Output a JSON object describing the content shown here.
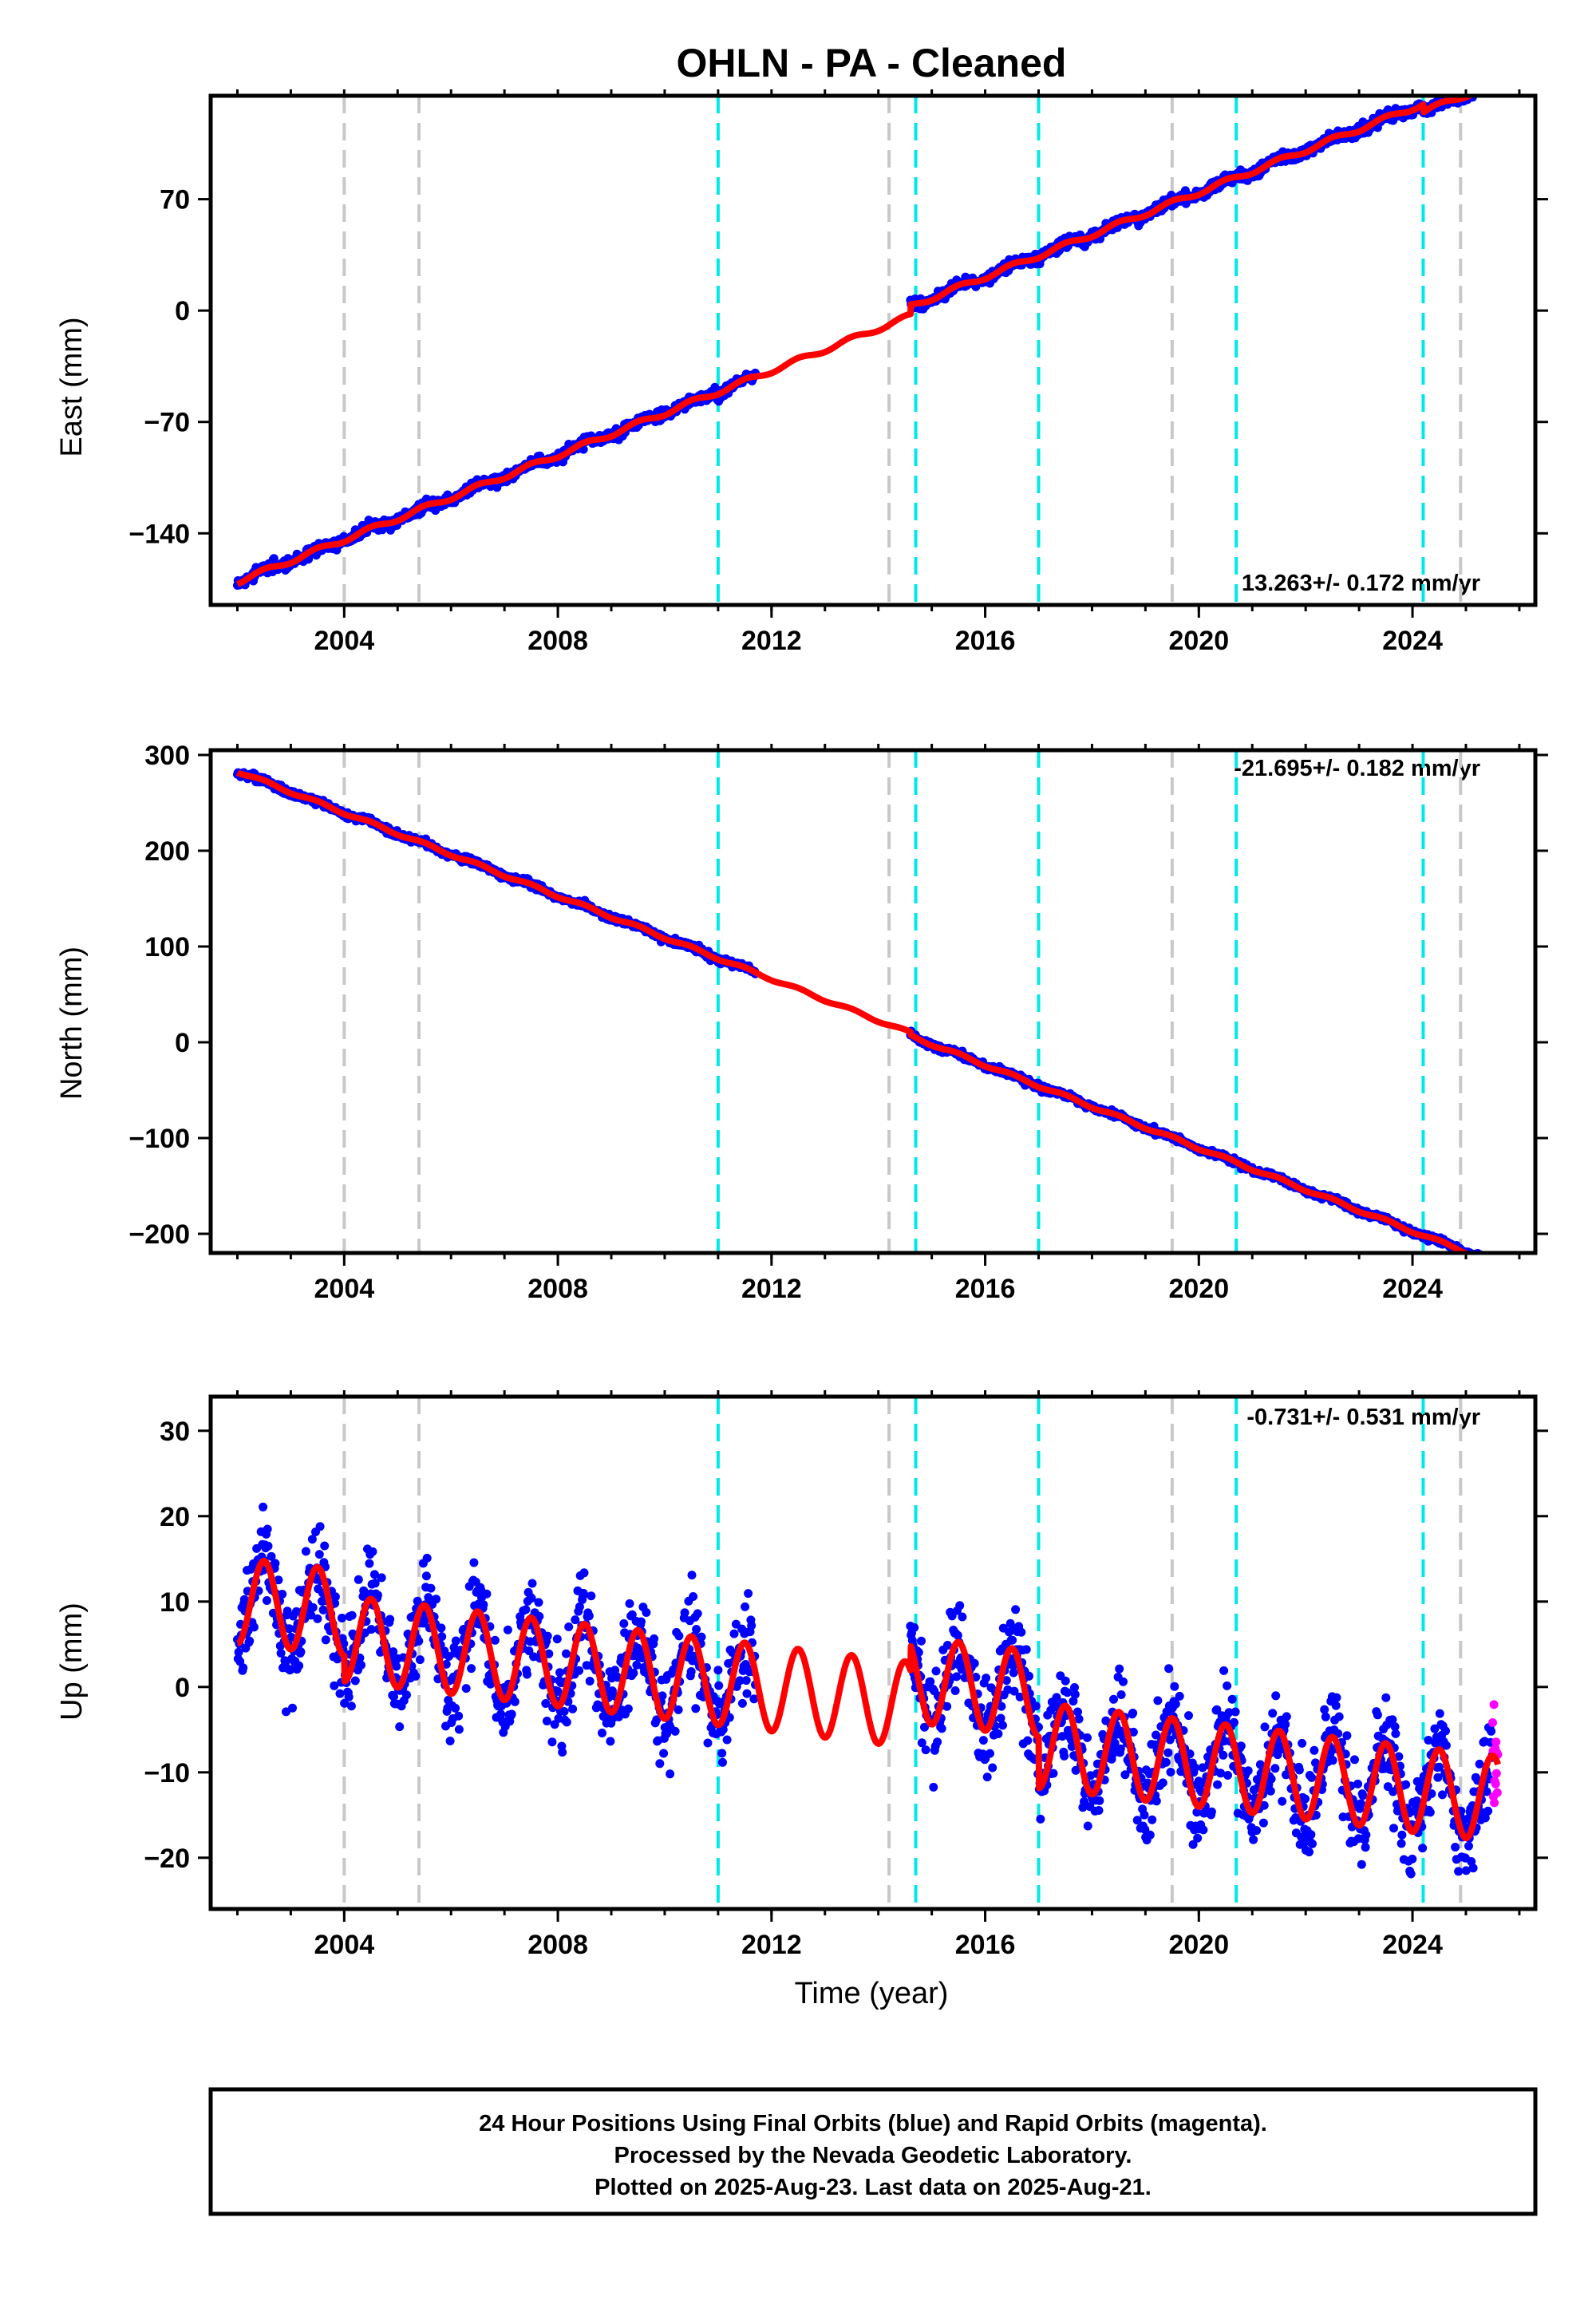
{
  "title": "OHLN  - PA - Cleaned",
  "colors": {
    "final_orbits": "#0000ff",
    "rapid_orbits": "#ff00ff",
    "model": "#ff0000",
    "antenna_change": "#00e8e8",
    "other_event": "#c8c8c8"
  },
  "chart_data": [
    {
      "type": "scatter",
      "name": "east",
      "ylabel": "East (mm)",
      "xlabel": "",
      "xlim": [
        2001.5,
        2026.3
      ],
      "ylim": [
        -185,
        135
      ],
      "x_ticks": [
        2004,
        2008,
        2012,
        2016,
        2020,
        2024
      ],
      "y_ticks": [
        -140,
        -70,
        0,
        70
      ],
      "rate_label": "13.263+/- 0.172 mm/yr",
      "legend_position": "bottom-right",
      "grid": false,
      "trend": {
        "rate": 13.263,
        "ref_year": 2013.8,
        "ref_value": -14
      },
      "seasonal": {
        "amplitude": 1.5
      },
      "offsets": [
        {
          "year": 2014.6,
          "value": 6
        },
        {
          "year": 2024.2,
          "value": -5
        }
      ],
      "final_orbits_span": [
        [
          2002.0,
          2011.7
        ],
        [
          2014.6,
          2025.5
        ]
      ],
      "rapid_orbits_span": [
        2025.5,
        2025.6
      ],
      "scatter_noise": 2.5
    },
    {
      "type": "scatter",
      "name": "north",
      "ylabel": "North (mm)",
      "xlabel": "",
      "xlim": [
        2001.5,
        2026.3
      ],
      "ylim": [
        -220,
        305
      ],
      "x_ticks": [
        2004,
        2008,
        2012,
        2016,
        2020,
        2024
      ],
      "y_ticks": [
        -200,
        -100,
        0,
        100,
        200,
        300
      ],
      "rate_label": "-21.695+/- 0.182 mm/yr",
      "legend_position": "top-right",
      "grid": false,
      "trend": {
        "rate": -21.695,
        "ref_year": 2013.8,
        "ref_value": 27
      },
      "seasonal": {
        "amplitude": 1.5
      },
      "offsets": [
        {
          "year": 2014.6,
          "value": -3
        }
      ],
      "final_orbits_span": [
        [
          2002.0,
          2011.7
        ],
        [
          2014.6,
          2025.5
        ]
      ],
      "rapid_orbits_span": [
        2025.5,
        2025.6
      ],
      "scatter_noise": 2.5
    },
    {
      "type": "scatter",
      "name": "up",
      "ylabel": "Up (mm)",
      "xlabel": "Time (year)",
      "xlim": [
        2001.5,
        2026.3
      ],
      "ylim": [
        -26,
        34
      ],
      "x_ticks": [
        2004,
        2008,
        2012,
        2016,
        2020,
        2024
      ],
      "y_ticks": [
        -20,
        -10,
        0,
        10,
        20,
        30
      ],
      "rate_label": "-0.731+/- 0.531 mm/yr",
      "legend_position": "top-right",
      "grid": false,
      "trend": {
        "rate": -0.731,
        "ref_year": 2013.8,
        "ref_value": 1.5
      },
      "seasonal": {
        "amplitude": 5
      },
      "offsets": [
        {
          "year": 2004.0,
          "value": -3
        },
        {
          "year": 2014.6,
          "value": 3
        },
        {
          "year": 2017.0,
          "value": -6
        }
      ],
      "final_orbits_span": [
        [
          2002.0,
          2011.7
        ],
        [
          2014.6,
          2025.5
        ]
      ],
      "rapid_orbits_span": [
        2025.5,
        2025.6
      ],
      "scatter_noise": 4
    }
  ],
  "event_lines": {
    "antenna_change_years": [
      2011.0,
      2014.7,
      2017.0,
      2020.7,
      2024.2
    ],
    "other_event_years": [
      2004.0,
      2005.4,
      2014.2,
      2019.5,
      2024.9
    ]
  },
  "footer": {
    "line1": "24 Hour Positions Using Final Orbits (blue) and Rapid Orbits (magenta).",
    "line2": "Processed by the Nevada Geodetic Laboratory.",
    "line3": "Plotted on 2025-Aug-23. Last data on 2025-Aug-21."
  }
}
